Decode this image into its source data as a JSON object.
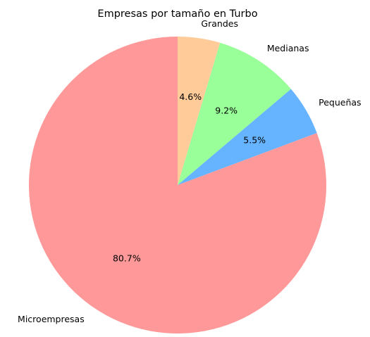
{
  "chart_data": {
    "type": "pie",
    "title": "Empresas por tamaño en Turbo",
    "slices": [
      {
        "label": "Microempresas",
        "value": 80.7,
        "display": "80.7%",
        "color": "#ff9999"
      },
      {
        "label": "Pequeñas",
        "value": 5.5,
        "display": "5.5%",
        "color": "#66b3ff"
      },
      {
        "label": "Medianas",
        "value": 9.2,
        "display": "9.2%",
        "color": "#99ff99"
      },
      {
        "label": "Grandes",
        "value": 4.6,
        "display": "4.6%",
        "color": "#ffcc99"
      }
    ],
    "start_angle_deg": 90,
    "direction": "counterclockwise"
  }
}
